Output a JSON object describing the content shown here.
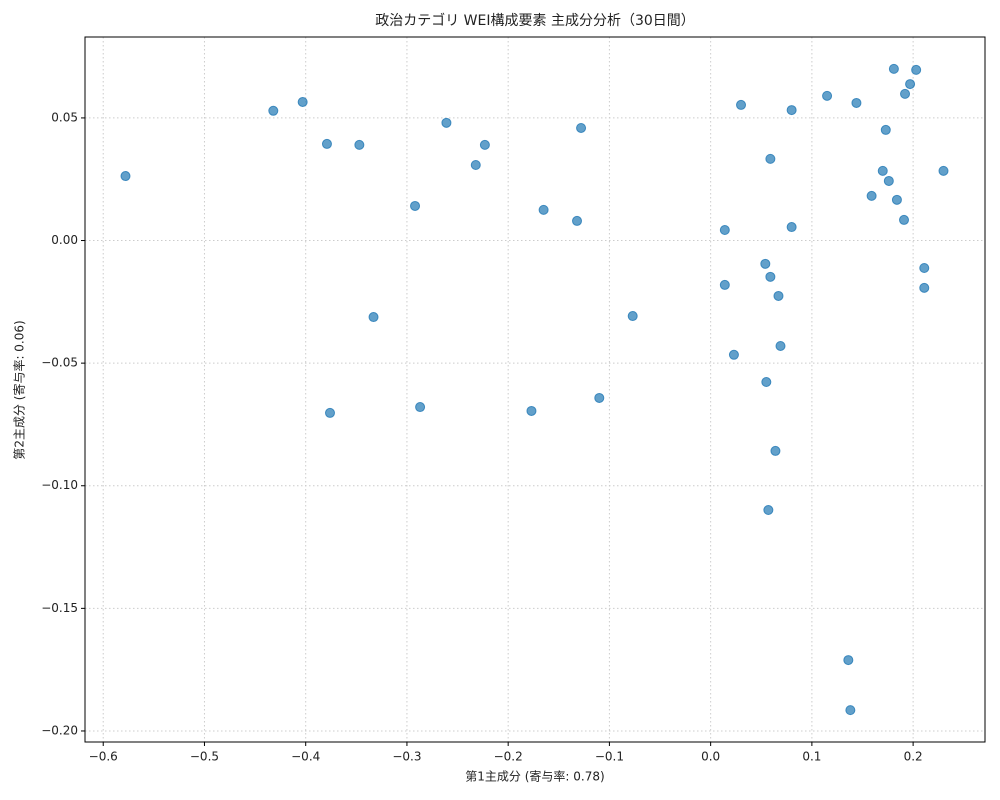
{
  "chart_data": {
    "type": "scatter",
    "title": "政治カテゴリ WEI構成要素 主成分分析（30日間）",
    "x_label": "第1主成分 (寄与率: 0.78)",
    "y_label": "第2主成分 (寄与率: 0.06)",
    "color": "#1f77b4",
    "grid": true,
    "xlim": [
      -0.618,
      0.271
    ],
    "ylim": [
      -0.2045,
      0.083
    ],
    "xticks": [
      {
        "value": -0.6,
        "label": "−0.6"
      },
      {
        "value": -0.5,
        "label": "−0.5"
      },
      {
        "value": -0.4,
        "label": "−0.4"
      },
      {
        "value": -0.3,
        "label": "−0.3"
      },
      {
        "value": -0.2,
        "label": "−0.2"
      },
      {
        "value": -0.1,
        "label": "−0.1"
      },
      {
        "value": 0,
        "label": "0.0"
      },
      0.1,
      0.2
    ],
    "yticks": [
      {
        "value": -0.2,
        "label": "−0.20"
      },
      {
        "value": -0.15,
        "label": "−0.15"
      },
      {
        "value": -0.1,
        "label": "−0.10"
      },
      {
        "value": -0.05,
        "label": "−0.05"
      },
      {
        "value": 0,
        "label": "0.00"
      },
      0.05
    ],
    "x": [
      -0.578,
      -0.432,
      -0.403,
      -0.379,
      -0.347,
      -0.261,
      -0.223,
      -0.232,
      -0.292,
      -0.165,
      -0.128,
      -0.132,
      -0.333,
      -0.077,
      -0.376,
      -0.287,
      -0.177,
      -0.11,
      0.03,
      0.08,
      0.115,
      0.144,
      0.181,
      0.203,
      0.197,
      0.192,
      0.173,
      0.059,
      0.17,
      0.176,
      0.23,
      0.159,
      0.184,
      0.191,
      0.014,
      0.08,
      0.054,
      0.059,
      0.014,
      0.067,
      0.211,
      0.211,
      0.069,
      0.023,
      0.055,
      0.064,
      0.057,
      0.136,
      0.138
    ],
    "values": [
      0.0263,
      0.0529,
      0.0565,
      0.0394,
      0.039,
      0.048,
      0.039,
      0.0308,
      0.0141,
      0.0125,
      0.0459,
      0.008,
      -0.0312,
      -0.0308,
      -0.0703,
      -0.0679,
      -0.0695,
      -0.0642,
      0.0553,
      0.0532,
      0.059,
      0.0561,
      0.07,
      0.0696,
      0.0638,
      0.0598,
      0.0451,
      0.0333,
      0.0284,
      0.0243,
      0.0284,
      0.0182,
      0.0166,
      0.0084,
      0.0043,
      0.0055,
      -0.0095,
      -0.0148,
      -0.0181,
      -0.0226,
      -0.0112,
      -0.0193,
      -0.043,
      -0.0466,
      -0.0577,
      -0.0858,
      -0.1099,
      -0.1711,
      -0.1915
    ]
  }
}
